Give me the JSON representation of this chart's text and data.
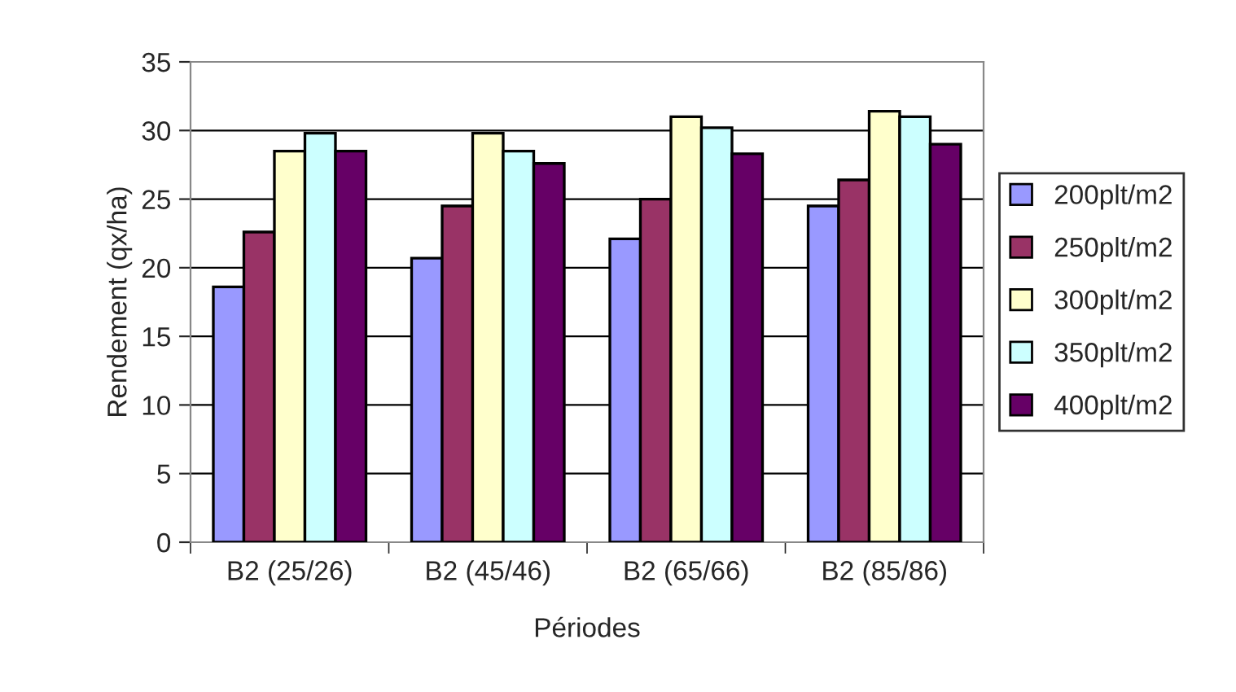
{
  "chart_data": {
    "type": "bar",
    "xlabel": "Périodes",
    "ylabel": "Rendement (qx/ha)",
    "categories": [
      "B2 (25/26)",
      "B2 (45/46)",
      "B2 (65/66)",
      "B2 (85/86)"
    ],
    "series": [
      {
        "name": "200plt/m2",
        "color": "#9999ff",
        "values": [
          18.6,
          20.7,
          22.1,
          24.5
        ]
      },
      {
        "name": "250plt/m2",
        "color": "#993366",
        "values": [
          22.6,
          24.5,
          25.0,
          26.4
        ]
      },
      {
        "name": "300plt/m2",
        "color": "#ffffcc",
        "values": [
          28.5,
          29.8,
          31.0,
          31.4
        ]
      },
      {
        "name": "350plt/m2",
        "color": "#ccffff",
        "values": [
          29.8,
          28.5,
          30.2,
          31.0
        ]
      },
      {
        "name": "400plt/m2",
        "color": "#660066",
        "values": [
          28.5,
          27.6,
          28.3,
          29.0
        ]
      }
    ],
    "ylim": [
      0,
      35
    ],
    "yticks": [
      0,
      5,
      10,
      15,
      20,
      25,
      30,
      35
    ],
    "grid": "y",
    "legend": "right"
  }
}
